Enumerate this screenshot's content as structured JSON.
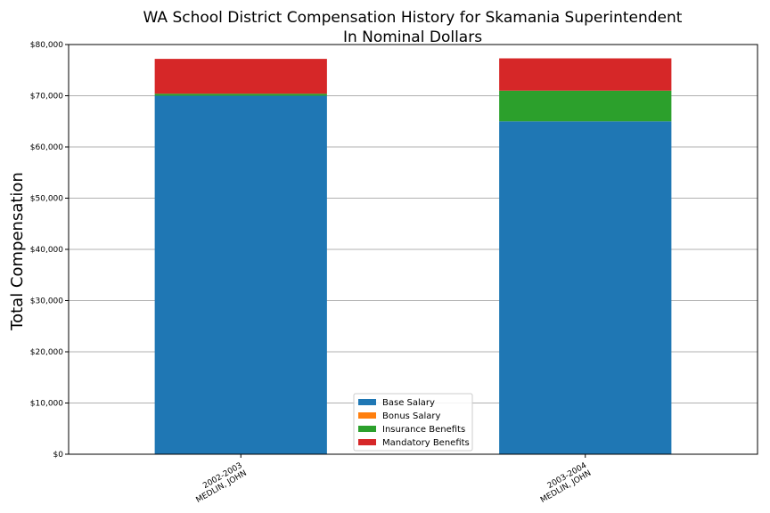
{
  "chart_data": {
    "type": "bar",
    "stacked": true,
    "title": "WA School District Compensation History for Skamania Superintendent",
    "subtitle": "In Nominal Dollars",
    "ylabel": "Total Compensation",
    "xlabel": "",
    "ylim": [
      0,
      80000
    ],
    "yticks": [
      0,
      10000,
      20000,
      30000,
      40000,
      50000,
      60000,
      70000,
      80000
    ],
    "ytick_labels": [
      "$0",
      "$10,000",
      "$20,000",
      "$30,000",
      "$40,000",
      "$50,000",
      "$60,000",
      "$70,000",
      "$80,000"
    ],
    "grid": "horizontal",
    "legend_position": "bottom-center",
    "categories": [
      {
        "year": "2002-2003",
        "name": "MEDLIN, JOHN"
      },
      {
        "year": "2003-2004",
        "name": "MEDLIN, JOHN"
      }
    ],
    "series": [
      {
        "name": "Base Salary",
        "color": "#1f77b4",
        "values": [
          70000,
          65000
        ]
      },
      {
        "name": "Bonus Salary",
        "color": "#ff7f0e",
        "values": [
          0,
          0
        ]
      },
      {
        "name": "Insurance Benefits",
        "color": "#2ca02c",
        "values": [
          400,
          6000
        ]
      },
      {
        "name": "Mandatory Benefits",
        "color": "#d62728",
        "values": [
          6800,
          6300
        ]
      }
    ]
  }
}
